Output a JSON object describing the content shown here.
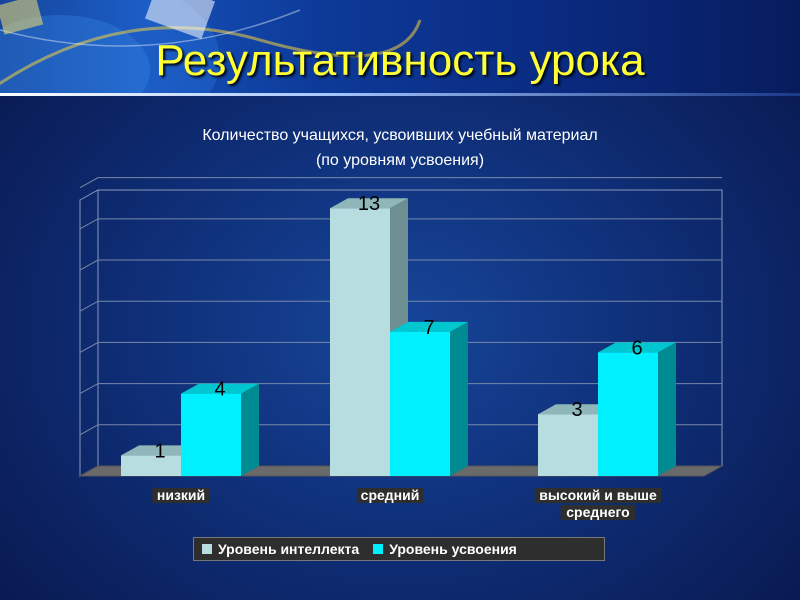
{
  "page": {
    "title": "Результативность урока"
  },
  "colors": {
    "series1": "#b8dde0",
    "series2": "#00f0ff",
    "title": "#ffff33"
  },
  "chart_data": {
    "type": "bar",
    "title_lines": [
      "Количество учащихся, усвоивших учебный материал",
      "(по уровням усвоения)"
    ],
    "categories": [
      "низкий",
      "средний",
      "высокий и выше среднего"
    ],
    "category_lines": [
      [
        "низкий"
      ],
      [
        "средний"
      ],
      [
        "высокий и выше",
        "среднего"
      ]
    ],
    "series": [
      {
        "name": "Уровень интеллекта",
        "values": [
          1,
          13,
          3
        ]
      },
      {
        "name": "Уровень усвоения",
        "values": [
          4,
          7,
          6
        ]
      }
    ],
    "ylim": [
      0,
      14
    ],
    "grid": true,
    "legend": "bottom",
    "style": "3d-columns"
  }
}
